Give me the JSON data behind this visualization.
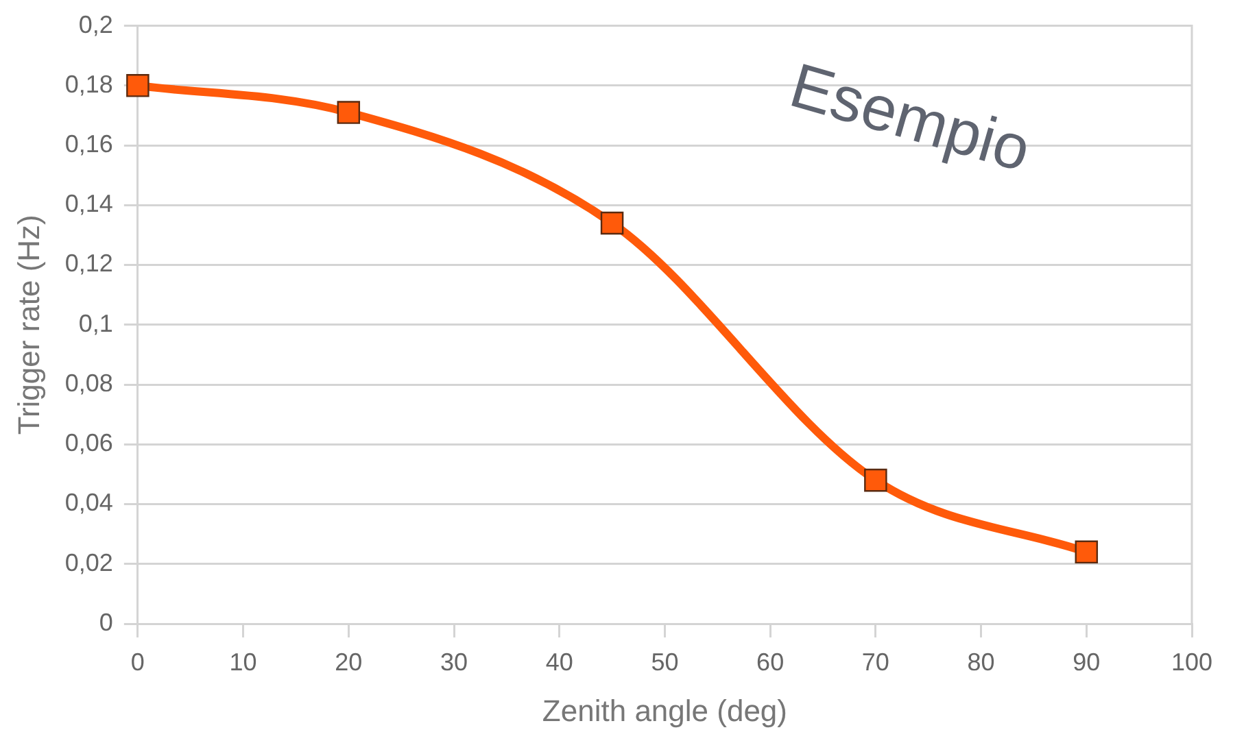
{
  "chart_data": {
    "type": "line",
    "xlabel": "Zenith angle (deg)",
    "ylabel": "Trigger rate (Hz)",
    "annotations": [
      "Esempio"
    ],
    "x": [
      0,
      20,
      45,
      70,
      90
    ],
    "series": [
      {
        "color": "#ff5a0a",
        "values": [
          0.18,
          0.171,
          0.134,
          0.048,
          0.024
        ]
      }
    ],
    "xlim": [
      0,
      100
    ],
    "xticks": [
      0,
      10,
      20,
      30,
      40,
      50,
      60,
      70,
      80,
      90,
      100
    ],
    "ylim": [
      0,
      0.2
    ],
    "yticks": [
      {
        "value": 0,
        "label": "0"
      },
      {
        "value": 0.02,
        "label": "0,02"
      },
      {
        "value": 0.04,
        "label": "0,04"
      },
      {
        "value": 0.06,
        "label": "0,06"
      },
      {
        "value": 0.08,
        "label": "0,08"
      },
      {
        "value": 0.1,
        "label": "0,1"
      },
      {
        "value": 0.12,
        "label": "0,12"
      },
      {
        "value": 0.14,
        "label": "0,14"
      },
      {
        "value": 0.16,
        "label": "0,16"
      },
      {
        "value": 0.18,
        "label": "0,18"
      },
      {
        "value": 0.2,
        "label": "0,2"
      }
    ],
    "grid": "y",
    "legend": false,
    "marker": "square",
    "line_style": "solid"
  }
}
